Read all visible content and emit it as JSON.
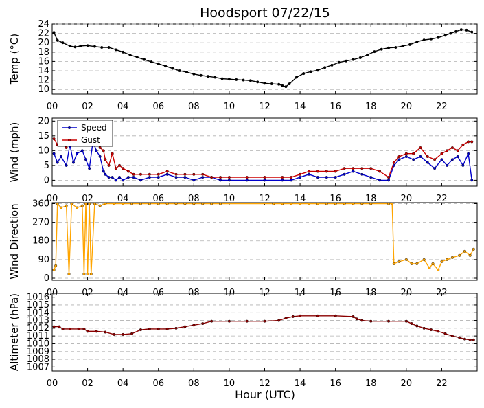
{
  "title": "Hoodsport 07/22/15",
  "xlabel": "Hour (UTC)",
  "x_tick_labels": [
    "00",
    "02",
    "04",
    "06",
    "08",
    "10",
    "12",
    "14",
    "16",
    "18",
    "20",
    "22"
  ],
  "colors": {
    "temp": "#000000",
    "speed": "#0000cc",
    "gust": "#cc0000",
    "direction": "#ffa500",
    "altimeter": "#8b0000",
    "grid": "#b0b0b0"
  },
  "chart_data": [
    {
      "type": "line",
      "ylabel": "Temp (°C)",
      "ylim": [
        9,
        24
      ],
      "y_ticks": [
        10,
        12,
        14,
        16,
        18,
        20,
        22,
        24
      ],
      "grid": true,
      "series": [
        {
          "key": "temp",
          "x": [
            0.1,
            0.3,
            0.6,
            1.0,
            1.3,
            1.6,
            2.0,
            2.4,
            2.8,
            3.2,
            3.6,
            4.0,
            4.4,
            4.8,
            5.2,
            5.6,
            6.0,
            6.4,
            6.8,
            7.2,
            7.6,
            8.0,
            8.4,
            8.8,
            9.2,
            9.6,
            10.0,
            10.4,
            10.8,
            11.2,
            11.6,
            12.0,
            12.4,
            12.8,
            13.0,
            13.2,
            13.4,
            13.8,
            14.2,
            14.6,
            15.0,
            15.4,
            15.8,
            16.2,
            16.6,
            17.0,
            17.4,
            17.8,
            18.2,
            18.6,
            19.0,
            19.4,
            19.8,
            20.2,
            20.6,
            21.0,
            21.4,
            21.8,
            22.2,
            22.5,
            22.8,
            23.1,
            23.4,
            23.7
          ],
          "values": [
            22.2,
            20.5,
            20.0,
            19.3,
            19.1,
            19.3,
            19.4,
            19.2,
            19.0,
            19.0,
            18.5,
            18.0,
            17.4,
            16.9,
            16.4,
            15.9,
            15.5,
            15.0,
            14.5,
            14.0,
            13.7,
            13.3,
            13.0,
            12.8,
            12.6,
            12.3,
            12.2,
            12.1,
            12.0,
            11.9,
            11.6,
            11.3,
            11.2,
            11.1,
            10.8,
            10.6,
            11.2,
            12.6,
            13.4,
            13.8,
            14.1,
            14.7,
            15.2,
            15.8,
            16.1,
            16.4,
            16.8,
            17.4,
            18.1,
            18.6,
            18.9,
            19.0,
            19.3,
            19.6,
            20.2,
            20.6,
            20.8,
            21.1,
            21.6,
            22.0,
            22.4,
            22.8,
            22.7,
            22.3
          ]
        }
      ]
    },
    {
      "type": "line",
      "ylabel": "Wind (mph)",
      "ylim": [
        -2,
        21
      ],
      "y_ticks": [
        0,
        5,
        10,
        15,
        20
      ],
      "grid": true,
      "legend": "top-left",
      "series": [
        {
          "key": "speed",
          "name": "Speed",
          "x": [
            0.1,
            0.3,
            0.5,
            0.8,
            1.0,
            1.2,
            1.4,
            1.7,
            1.9,
            2.1,
            2.3,
            2.5,
            2.7,
            2.9,
            3.0,
            3.2,
            3.4,
            3.6,
            3.8,
            4.0,
            4.3,
            4.6,
            5.0,
            5.5,
            6.0,
            6.5,
            7.0,
            7.5,
            8.0,
            8.5,
            9.0,
            9.5,
            10.0,
            11.0,
            12.0,
            13.0,
            13.5,
            14.0,
            14.5,
            15.0,
            15.5,
            16.0,
            16.5,
            17.0,
            17.5,
            18.0,
            18.5,
            19.0,
            19.3,
            19.6,
            20.0,
            20.4,
            20.8,
            21.2,
            21.6,
            22.0,
            22.3,
            22.6,
            22.9,
            23.2,
            23.5,
            23.7
          ],
          "values": [
            9,
            6,
            8,
            5,
            12,
            6,
            9,
            10,
            7,
            4,
            13,
            10,
            8,
            3,
            2,
            1,
            1,
            0,
            1,
            0,
            1,
            1,
            0,
            1,
            1,
            2,
            1,
            1,
            0,
            1,
            1,
            0,
            0,
            0,
            0,
            0,
            0,
            1,
            2,
            1,
            1,
            1,
            2,
            3,
            2,
            1,
            0,
            0,
            5,
            7,
            8,
            7,
            8,
            6,
            4,
            7,
            5,
            7,
            8,
            5,
            9,
            0
          ]
        },
        {
          "key": "gust",
          "name": "Gust",
          "x": [
            0.1,
            0.3,
            0.5,
            0.8,
            1.0,
            1.2,
            1.4,
            1.7,
            1.9,
            2.1,
            2.3,
            2.5,
            2.7,
            2.9,
            3.0,
            3.2,
            3.4,
            3.6,
            3.8,
            4.0,
            4.3,
            4.6,
            5.0,
            5.5,
            6.0,
            6.5,
            7.0,
            7.5,
            8.0,
            8.5,
            9.0,
            9.5,
            10.0,
            11.0,
            12.0,
            13.0,
            13.5,
            14.0,
            14.5,
            15.0,
            15.5,
            16.0,
            16.5,
            17.0,
            17.5,
            18.0,
            18.5,
            19.0,
            19.3,
            19.6,
            20.0,
            20.4,
            20.8,
            21.2,
            21.6,
            22.0,
            22.3,
            22.6,
            22.9,
            23.2,
            23.5,
            23.7
          ],
          "values": [
            14,
            12,
            14,
            11,
            15,
            13,
            12,
            14,
            13,
            12,
            14,
            13,
            11,
            10,
            7,
            5,
            9,
            4,
            5,
            4,
            3,
            2,
            2,
            2,
            2,
            3,
            2,
            2,
            2,
            2,
            1,
            1,
            1,
            1,
            1,
            1,
            1,
            2,
            3,
            3,
            3,
            3,
            4,
            4,
            4,
            4,
            3,
            1,
            6,
            8,
            9,
            9,
            11,
            8,
            7,
            9,
            10,
            11,
            10,
            12,
            13,
            13
          ]
        }
      ]
    },
    {
      "type": "line",
      "ylabel": "Wind Direction",
      "ylim": [
        -10,
        365
      ],
      "y_ticks": [
        0,
        90,
        180,
        270,
        360
      ],
      "grid": true,
      "series": [
        {
          "key": "direction",
          "x": [
            0.1,
            0.2,
            0.3,
            0.5,
            0.8,
            0.95,
            1.1,
            1.4,
            1.7,
            1.8,
            1.9,
            2.0,
            2.1,
            2.2,
            2.4,
            2.7,
            3.0,
            3.5,
            4.0,
            4.5,
            5.0,
            5.5,
            6.0,
            6.5,
            7.0,
            7.5,
            8.0,
            8.5,
            9.0,
            9.5,
            12.5,
            13.0,
            13.5,
            14.0,
            14.5,
            15.0,
            15.5,
            16.0,
            16.5,
            17.0,
            17.5,
            18.0,
            19.0,
            19.2,
            19.3,
            19.6,
            20.0,
            20.3,
            20.6,
            21.0,
            21.3,
            21.5,
            21.8,
            22.0,
            22.3,
            22.6,
            23.0,
            23.3,
            23.6,
            23.8
          ],
          "values": [
            40,
            60,
            360,
            340,
            350,
            20,
            360,
            340,
            350,
            20,
            360,
            20,
            360,
            20,
            360,
            350,
            360,
            360,
            360,
            360,
            360,
            360,
            360,
            360,
            360,
            360,
            360,
            360,
            360,
            360,
            360,
            360,
            360,
            360,
            360,
            360,
            360,
            360,
            360,
            360,
            360,
            360,
            360,
            360,
            70,
            80,
            90,
            70,
            70,
            90,
            50,
            70,
            40,
            80,
            90,
            100,
            110,
            130,
            110,
            140
          ]
        }
      ]
    },
    {
      "type": "line",
      "ylabel": "Altimeter (hPa)",
      "ylim": [
        1006.5,
        1016.5
      ],
      "y_ticks": [
        1007,
        1008,
        1009,
        1010,
        1011,
        1012,
        1013,
        1014,
        1015,
        1016
      ],
      "grid": true,
      "series": [
        {
          "key": "altimeter",
          "x": [
            0.1,
            0.4,
            0.6,
            1.0,
            1.5,
            1.8,
            2.0,
            2.5,
            3.0,
            3.5,
            4.0,
            4.5,
            5.0,
            5.5,
            6.0,
            6.5,
            7.0,
            7.5,
            8.0,
            8.5,
            9.0,
            10.0,
            11.0,
            12.0,
            12.8,
            13.2,
            13.6,
            14.0,
            15.0,
            16.0,
            17.0,
            17.2,
            17.5,
            18.0,
            19.0,
            20.0,
            20.3,
            20.6,
            21.0,
            21.4,
            21.8,
            22.2,
            22.6,
            23.0,
            23.3,
            23.6,
            23.8
          ],
          "values": [
            1012.2,
            1012.2,
            1011.9,
            1011.9,
            1011.9,
            1011.9,
            1011.6,
            1011.6,
            1011.5,
            1011.2,
            1011.2,
            1011.3,
            1011.8,
            1011.9,
            1011.9,
            1011.9,
            1012.0,
            1012.2,
            1012.4,
            1012.6,
            1012.9,
            1012.9,
            1012.9,
            1012.9,
            1013.0,
            1013.3,
            1013.5,
            1013.6,
            1013.6,
            1013.6,
            1013.5,
            1013.2,
            1013.0,
            1012.9,
            1012.9,
            1012.9,
            1012.6,
            1012.3,
            1012.0,
            1011.8,
            1011.6,
            1011.3,
            1011.0,
            1010.8,
            1010.6,
            1010.5,
            1010.5
          ]
        }
      ]
    }
  ]
}
